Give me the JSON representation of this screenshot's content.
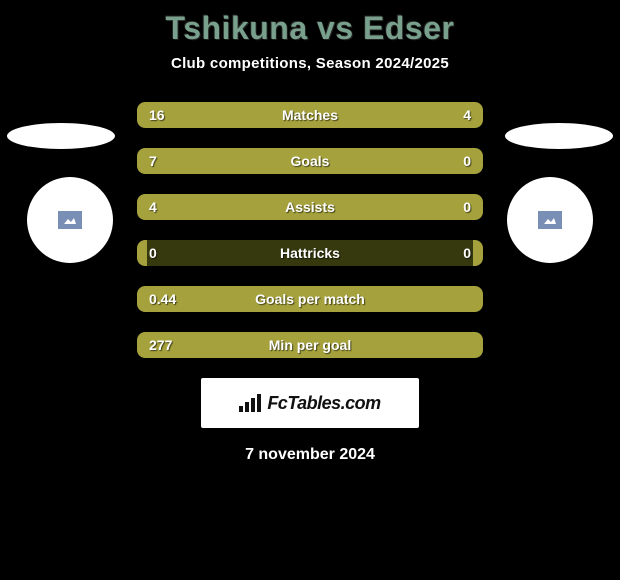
{
  "title": "Tshikuna vs Edser",
  "subtitle": "Club competitions, Season 2024/2025",
  "date": "7 november 2024",
  "colors": {
    "title_color": "#78a08c",
    "text_color": "#ffffff",
    "bar_left_color": "#a5a23d",
    "bar_right_color": "#a5a23d",
    "bar_empty_color": "#36390e",
    "background": "#000000",
    "avatar_bg": "#ffffff",
    "logo_bg": "#ffffff",
    "logo_text": "#111111"
  },
  "stats": [
    {
      "name": "Matches",
      "left_val": "16",
      "right_val": "4",
      "left_pct": 77,
      "right_pct": 23
    },
    {
      "name": "Goals",
      "left_val": "7",
      "right_val": "0",
      "left_pct": 97,
      "right_pct": 3
    },
    {
      "name": "Assists",
      "left_val": "4",
      "right_val": "0",
      "left_pct": 97,
      "right_pct": 3
    },
    {
      "name": "Hattricks",
      "left_val": "0",
      "right_val": "0",
      "left_pct": 3,
      "right_pct": 3
    },
    {
      "name": "Goals per match",
      "left_val": "0.44",
      "right_val": "",
      "left_pct": 97,
      "right_pct": 3
    },
    {
      "name": "Min per goal",
      "left_val": "277",
      "right_val": "",
      "left_pct": 97,
      "right_pct": 3
    }
  ],
  "logo": {
    "text": "FcTables.com"
  }
}
